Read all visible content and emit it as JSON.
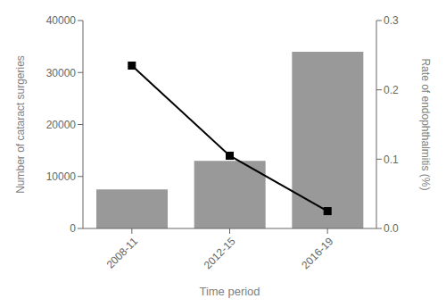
{
  "chart_data": {
    "type": "bar",
    "categories": [
      "2008-11",
      "2012-15",
      "2016-19"
    ],
    "xlabel": "Time period",
    "ylabel": "Number of cataract surgeries",
    "y2label": "Rate of endophthalmitis (%)",
    "ylim": [
      0,
      40000
    ],
    "yticks": [
      0,
      10000,
      20000,
      30000,
      40000
    ],
    "y2lim": [
      0.0,
      0.3
    ],
    "y2ticks": [
      {
        "value": 0.0,
        "label": "0.0"
      },
      0.1,
      0.2,
      0.3
    ],
    "grid": false,
    "series": [
      {
        "type": "bar",
        "color": "#999999",
        "values": [
          7500,
          13000,
          34000
        ]
      },
      {
        "type": "line",
        "axis": "y2",
        "color": "#000000",
        "marker": "square",
        "values": [
          0.235,
          0.105,
          0.025
        ]
      }
    ]
  }
}
